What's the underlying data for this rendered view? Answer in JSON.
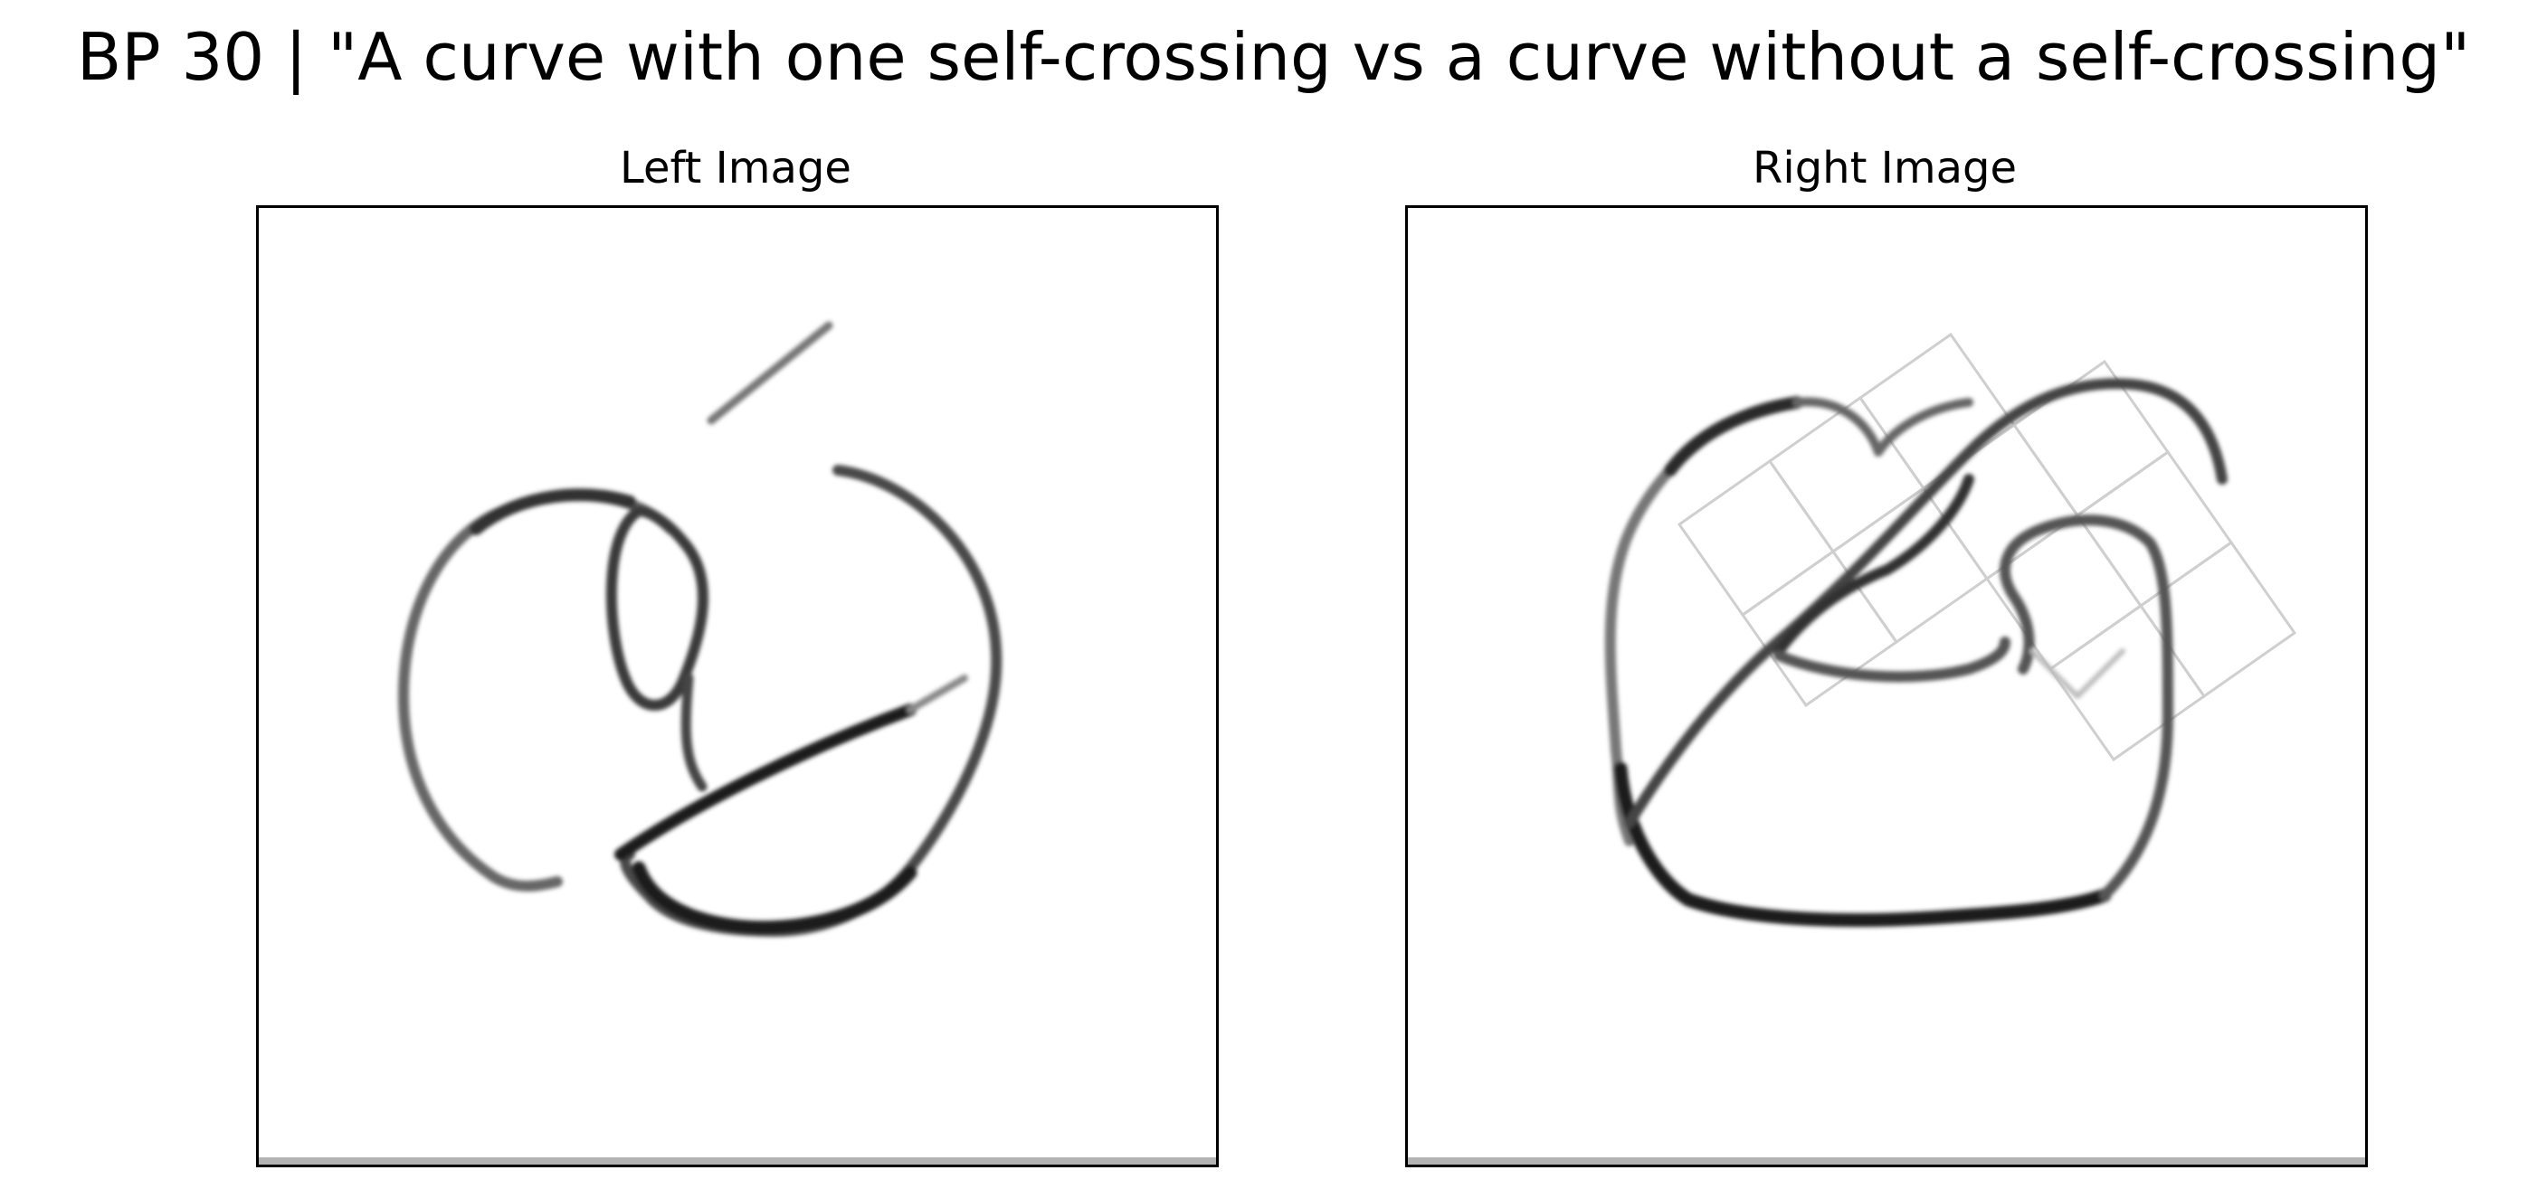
{
  "figure": {
    "suptitle": "BP 30 | \"A curve with one self-crossing vs a curve without a self-crossing\"",
    "panels": [
      {
        "title": "Left Image",
        "content": "hand-drawn closed curve sketch with self-crossings (grayscale)"
      },
      {
        "title": "Right Image",
        "content": "hand-drawn curve sketch over faint grid of squares (grayscale)"
      }
    ],
    "colors": {
      "background": "#ffffff",
      "stroke_dark": "#1a1a1a",
      "stroke_mid": "#555555",
      "stroke_light": "#bbbbbb",
      "frame": "#000000"
    }
  }
}
